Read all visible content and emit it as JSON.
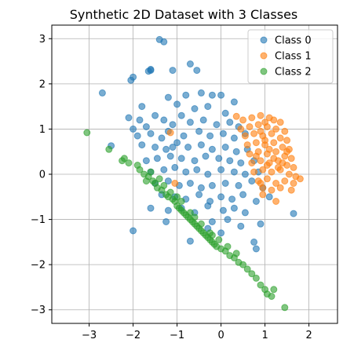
{
  "chart_data": {
    "type": "scatter",
    "title": "Synthetic 2D Dataset with 3 Classes",
    "xlabel": "",
    "ylabel": "",
    "xlim": [
      -3.85,
      2.65
    ],
    "ylim": [
      -3.3,
      3.3
    ],
    "xticks": [
      -3,
      -2,
      -1,
      0,
      1,
      2
    ],
    "yticks": [
      -3,
      -2,
      -1,
      0,
      1,
      2,
      3
    ],
    "grid": true,
    "legend_position": "top-right",
    "series": [
      {
        "name": "Class 0",
        "color": "#1f77b4",
        "points": [
          [
            -1.4,
            2.98
          ],
          [
            -1.3,
            2.93
          ],
          [
            -0.7,
            2.44
          ],
          [
            -0.55,
            2.3
          ],
          [
            -1.6,
            2.32
          ],
          [
            -1.1,
            2.3
          ],
          [
            -2.0,
            2.15
          ],
          [
            -2.05,
            2.08
          ],
          [
            -1.65,
            2.28
          ],
          [
            -2.7,
            1.8
          ],
          [
            -1.6,
            2.3
          ],
          [
            -1.8,
            1.5
          ],
          [
            -1.2,
            1.7
          ],
          [
            -0.8,
            1.75
          ],
          [
            -0.2,
            1.75
          ],
          [
            0.0,
            1.75
          ],
          [
            -0.45,
            1.8
          ],
          [
            -2.1,
            1.25
          ],
          [
            -1.85,
            1.2
          ],
          [
            -1.5,
            1.3
          ],
          [
            -1.0,
            1.55
          ],
          [
            -0.9,
            1.3
          ],
          [
            -0.6,
            1.45
          ],
          [
            -0.3,
            1.5
          ],
          [
            0.1,
            1.35
          ],
          [
            0.3,
            1.6
          ],
          [
            -2.0,
            1.0
          ],
          [
            -1.7,
            1.05
          ],
          [
            -1.3,
            1.2
          ],
          [
            -1.1,
            1.1
          ],
          [
            -0.7,
            1.15
          ],
          [
            -0.4,
            1.2
          ],
          [
            -0.1,
            1.1
          ],
          [
            0.2,
            1.15
          ],
          [
            0.4,
            1.05
          ],
          [
            -2.5,
            0.63
          ],
          [
            -1.9,
            0.85
          ],
          [
            -1.6,
            0.9
          ],
          [
            -1.35,
            0.8
          ],
          [
            -1.2,
            0.95
          ],
          [
            -0.85,
            0.85
          ],
          [
            -0.5,
            0.95
          ],
          [
            -0.25,
            0.85
          ],
          [
            0.05,
            0.9
          ],
          [
            0.3,
            0.8
          ],
          [
            0.55,
            0.9
          ],
          [
            -1.8,
            0.65
          ],
          [
            -1.5,
            0.6
          ],
          [
            -1.25,
            0.55
          ],
          [
            -1.0,
            0.7
          ],
          [
            -0.75,
            0.6
          ],
          [
            -0.45,
            0.65
          ],
          [
            -0.2,
            0.55
          ],
          [
            0.1,
            0.6
          ],
          [
            0.35,
            0.5
          ],
          [
            0.6,
            0.55
          ],
          [
            -1.7,
            0.3
          ],
          [
            -1.45,
            0.35
          ],
          [
            -1.15,
            0.4
          ],
          [
            -0.9,
            0.35
          ],
          [
            -0.6,
            0.3
          ],
          [
            -0.35,
            0.4
          ],
          [
            -0.05,
            0.35
          ],
          [
            0.2,
            0.3
          ],
          [
            0.45,
            0.25
          ],
          [
            0.75,
            0.3
          ],
          [
            -1.6,
            0.05
          ],
          [
            -1.3,
            0.1
          ],
          [
            -1.05,
            0.15
          ],
          [
            -0.8,
            0.05
          ],
          [
            -0.55,
            0.1
          ],
          [
            -0.3,
            0.0
          ],
          [
            0.0,
            0.1
          ],
          [
            0.3,
            0.05
          ],
          [
            0.55,
            0.0
          ],
          [
            0.85,
            0.05
          ],
          [
            -1.5,
            -0.2
          ],
          [
            -1.2,
            -0.15
          ],
          [
            -0.95,
            -0.25
          ],
          [
            -0.7,
            -0.2
          ],
          [
            -0.45,
            -0.3
          ],
          [
            -0.2,
            -0.25
          ],
          [
            0.1,
            -0.2
          ],
          [
            0.4,
            -0.25
          ],
          [
            0.7,
            -0.15
          ],
          [
            0.95,
            -0.3
          ],
          [
            -1.35,
            -0.45
          ],
          [
            -1.05,
            -0.5
          ],
          [
            -0.8,
            -0.55
          ],
          [
            -0.5,
            -0.45
          ],
          [
            -0.25,
            -0.6
          ],
          [
            0.0,
            -0.5
          ],
          [
            0.25,
            -0.55
          ],
          [
            0.5,
            -0.45
          ],
          [
            0.8,
            -0.6
          ],
          [
            1.1,
            -0.5
          ],
          [
            -0.9,
            -0.75
          ],
          [
            -0.6,
            -0.85
          ],
          [
            -0.3,
            -0.7
          ],
          [
            0.05,
            -0.8
          ],
          [
            0.3,
            -0.75
          ],
          [
            0.55,
            -0.85
          ],
          [
            -1.2,
            -0.8
          ],
          [
            -1.25,
            -1.05
          ],
          [
            -1.6,
            -0.75
          ],
          [
            -0.2,
            -1.05
          ],
          [
            0.15,
            -1.0
          ],
          [
            0.45,
            -1.15
          ],
          [
            0.9,
            -1.1
          ],
          [
            -2.0,
            -1.25
          ],
          [
            -0.7,
            -1.48
          ],
          [
            0.75,
            -1.5
          ],
          [
            0.8,
            -1.65
          ],
          [
            1.65,
            -0.87
          ],
          [
            -0.3,
            -1.2
          ],
          [
            0.0,
            -1.3
          ],
          [
            -1.1,
            0.6
          ]
        ]
      },
      {
        "name": "Class 1",
        "color": "#ff7f0e",
        "points": [
          [
            0.35,
            1.28
          ],
          [
            0.5,
            1.2
          ],
          [
            0.7,
            1.25
          ],
          [
            0.9,
            1.3
          ],
          [
            1.1,
            1.25
          ],
          [
            1.35,
            1.15
          ],
          [
            0.45,
            1.0
          ],
          [
            0.65,
            1.05
          ],
          [
            0.85,
            1.1
          ],
          [
            1.05,
            1.05
          ],
          [
            1.25,
            1.0
          ],
          [
            1.45,
            0.95
          ],
          [
            0.55,
            0.85
          ],
          [
            0.75,
            0.9
          ],
          [
            0.95,
            0.85
          ],
          [
            1.15,
            0.9
          ],
          [
            1.35,
            0.8
          ],
          [
            1.5,
            0.75
          ],
          [
            0.6,
            0.65
          ],
          [
            0.8,
            0.7
          ],
          [
            1.0,
            0.65
          ],
          [
            1.2,
            0.7
          ],
          [
            1.4,
            0.6
          ],
          [
            1.55,
            0.55
          ],
          [
            0.65,
            0.45
          ],
          [
            0.85,
            0.5
          ],
          [
            1.05,
            0.45
          ],
          [
            1.25,
            0.5
          ],
          [
            1.45,
            0.4
          ],
          [
            1.6,
            0.35
          ],
          [
            0.7,
            0.25
          ],
          [
            0.9,
            0.3
          ],
          [
            1.1,
            0.25
          ],
          [
            1.3,
            0.3
          ],
          [
            1.5,
            0.2
          ],
          [
            1.65,
            0.15
          ],
          [
            0.75,
            0.05
          ],
          [
            0.95,
            0.1
          ],
          [
            1.15,
            0.05
          ],
          [
            1.35,
            0.1
          ],
          [
            1.55,
            0.0
          ],
          [
            1.7,
            -0.05
          ],
          [
            0.85,
            -0.15
          ],
          [
            1.05,
            -0.1
          ],
          [
            1.25,
            -0.2
          ],
          [
            1.45,
            -0.15
          ],
          [
            1.65,
            -0.2
          ],
          [
            1.8,
            -0.1
          ],
          [
            0.95,
            -0.3
          ],
          [
            1.15,
            -0.35
          ],
          [
            1.35,
            -0.3
          ],
          [
            1.6,
            -0.35
          ],
          [
            0.9,
            0.95
          ],
          [
            1.0,
            0.75
          ],
          [
            1.1,
            0.55
          ],
          [
            1.2,
            0.35
          ],
          [
            1.3,
            0.15
          ],
          [
            1.05,
            0.2
          ],
          [
            1.0,
            1.15
          ],
          [
            1.2,
            1.2
          ],
          [
            0.8,
            0.4
          ],
          [
            1.5,
            0.5
          ],
          [
            1.4,
            0.25
          ],
          [
            1.25,
            -0.6
          ],
          [
            0.95,
            -0.45
          ],
          [
            0.9,
            -0.2
          ],
          [
            -1.05,
            -0.2
          ],
          [
            -1.15,
            0.92
          ]
        ]
      },
      {
        "name": "Class 2",
        "color": "#2ca02c",
        "points": [
          [
            -3.05,
            0.92
          ],
          [
            -2.55,
            0.55
          ],
          [
            -2.25,
            0.3
          ],
          [
            -2.2,
            0.35
          ],
          [
            -2.1,
            0.25
          ],
          [
            -1.9,
            0.2
          ],
          [
            -1.85,
            0.1
          ],
          [
            -1.75,
            0.0
          ],
          [
            -1.65,
            -0.05
          ],
          [
            -1.55,
            -0.15
          ],
          [
            -1.5,
            -0.2
          ],
          [
            -1.45,
            -0.3
          ],
          [
            -1.35,
            -0.35
          ],
          [
            -1.25,
            -0.45
          ],
          [
            -1.2,
            -0.5
          ],
          [
            -1.1,
            -0.55
          ],
          [
            -1.05,
            -0.6
          ],
          [
            -1.0,
            -0.7
          ],
          [
            -0.95,
            -0.75
          ],
          [
            -0.9,
            -0.8
          ],
          [
            -0.85,
            -0.85
          ],
          [
            -0.8,
            -0.9
          ],
          [
            -0.75,
            -0.95
          ],
          [
            -0.7,
            -1.0
          ],
          [
            -0.65,
            -1.05
          ],
          [
            -0.6,
            -1.1
          ],
          [
            -0.55,
            -1.15
          ],
          [
            -0.5,
            -1.2
          ],
          [
            -0.45,
            -1.25
          ],
          [
            -0.4,
            -1.3
          ],
          [
            -0.35,
            -1.35
          ],
          [
            -0.3,
            -1.4
          ],
          [
            -0.25,
            -1.45
          ],
          [
            -0.2,
            -1.5
          ],
          [
            -0.15,
            -1.55
          ],
          [
            -0.1,
            -1.6
          ],
          [
            0.0,
            -1.65
          ],
          [
            0.1,
            -1.7
          ],
          [
            0.2,
            -1.8
          ],
          [
            0.3,
            -1.85
          ],
          [
            0.4,
            -1.95
          ],
          [
            0.5,
            -2.0
          ],
          [
            0.6,
            -2.1
          ],
          [
            0.7,
            -2.2
          ],
          [
            0.8,
            -2.3
          ],
          [
            0.9,
            -2.45
          ],
          [
            1.0,
            -2.55
          ],
          [
            1.05,
            -2.65
          ],
          [
            1.15,
            -2.7
          ],
          [
            1.2,
            -2.55
          ],
          [
            1.45,
            -2.95
          ],
          [
            -1.7,
            -0.15
          ],
          [
            -1.3,
            -0.25
          ],
          [
            -1.15,
            -0.4
          ],
          [
            -0.9,
            -0.6
          ],
          [
            -0.7,
            -0.85
          ],
          [
            -0.45,
            -1.1
          ],
          [
            -0.25,
            -1.3
          ],
          [
            -0.05,
            -1.45
          ],
          [
            0.15,
            -1.6
          ],
          [
            0.35,
            -1.75
          ],
          [
            -1.6,
            0.05
          ],
          [
            -1.4,
            -0.1
          ],
          [
            -1.0,
            -0.5
          ],
          [
            -0.6,
            -0.95
          ],
          [
            -0.2,
            -1.35
          ]
        ]
      }
    ]
  }
}
